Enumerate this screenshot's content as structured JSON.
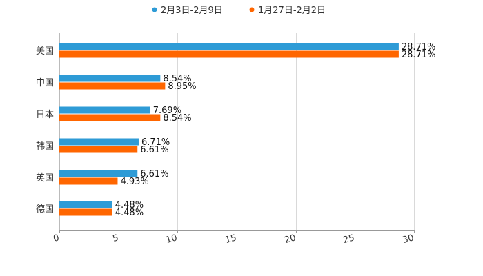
{
  "chart_data": {
    "type": "bar",
    "orientation": "horizontal",
    "categories": [
      "美国",
      "中国",
      "日本",
      "韩国",
      "英国",
      "德国"
    ],
    "series": [
      {
        "name": "2月3日-2月9日",
        "color": "#2e9bd6",
        "values": [
          28.71,
          8.54,
          7.69,
          6.71,
          6.61,
          4.48
        ],
        "labels": [
          "28.71%",
          "8.54%",
          "7.69%",
          "6.71%",
          "6.61%",
          "4.48%"
        ]
      },
      {
        "name": "1月27日-2月2日",
        "color": "#ff6600",
        "values": [
          28.71,
          8.95,
          8.54,
          6.61,
          4.93,
          4.48
        ],
        "labels": [
          "28.71%",
          "8.95%",
          "8.54%",
          "6.61%",
          "4.93%",
          "4.48%"
        ]
      }
    ],
    "xlim": [
      0,
      30
    ],
    "xticks": [
      "0",
      "5",
      "10",
      "15",
      "20",
      "25",
      "30"
    ],
    "legend_position": "top",
    "grid": true
  }
}
